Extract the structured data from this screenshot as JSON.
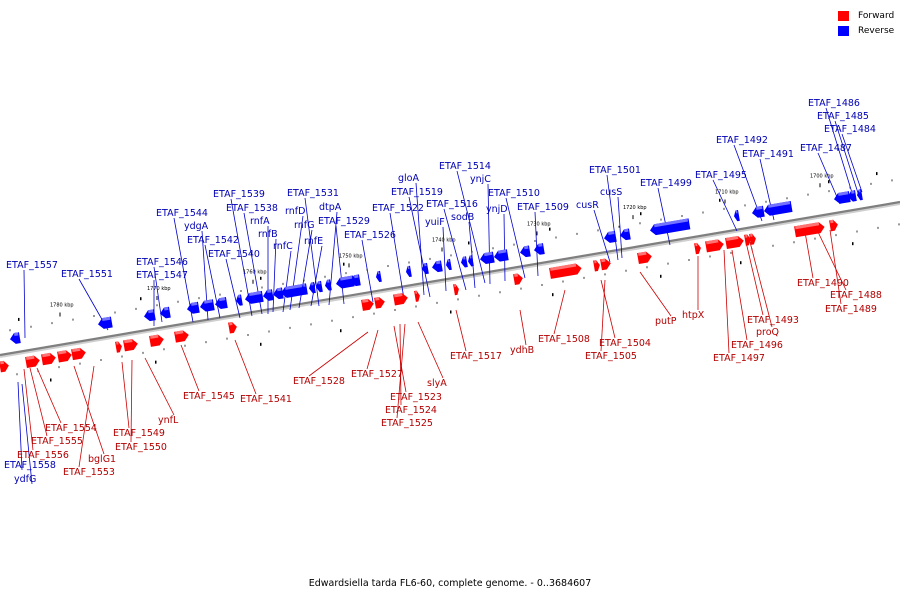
{
  "legend": {
    "forward_label": "Forward",
    "reverse_label": "Reverse",
    "forward_color": "#ff0000",
    "reverse_color": "#0000ff"
  },
  "caption": "Edwardsiella tarda FL6-60, complete genome. - 0..3684607",
  "colors": {
    "forward": "#ff0000",
    "forward_top": "#ff8080",
    "reverse": "#0000ff",
    "reverse_top": "#8080ff",
    "label_forward": "#b30000",
    "label_reverse": "#0000b3",
    "leader_forward": "#cc0000",
    "leader_reverse": "#0000cc",
    "axis": "#7f7f7f"
  },
  "scale": [
    {
      "label": "1780 kbp"
    },
    {
      "label": "1770 kbp"
    },
    {
      "label": "1760 kbp"
    },
    {
      "label": "1750 kbp"
    },
    {
      "label": "1740 kbp"
    },
    {
      "label": "1730 kbp"
    },
    {
      "label": "1720 kbp"
    },
    {
      "label": "1710 kbp"
    },
    {
      "label": "1700 kbp"
    }
  ],
  "reverse_labels": [
    "ETAF_1557",
    "ETAF_1551",
    "ETAF_1547",
    "ETAF_1546",
    "ETAF_1544",
    "ydgA",
    "ETAF_1542",
    "ETAF_1540",
    "ETAF_1539",
    "ETAF_1538",
    "rnfA",
    "rnfB",
    "rnfC",
    "rnfD",
    "rnfG",
    "rnfE",
    "ETAF_1531",
    "dtpA",
    "ETAF_1529",
    "ETAF_1526",
    "ETAF_1522",
    "gloA",
    "ETAF_1519",
    "yuiF",
    "ETAF_1516",
    "sodB",
    "ETAF_1514",
    "ynjC",
    "ynjD",
    "ETAF_1510",
    "ETAF_1509",
    "cusR",
    "ETAF_1501",
    "cusS",
    "ETAF_1499",
    "ETAF_1495",
    "ETAF_1492",
    "ETAF_1491",
    "ETAF_1487",
    "ETAF_1486",
    "ETAF_1485",
    "ETAF_1484",
    "ETAF_1558",
    "ydfG"
  ],
  "forward_labels": [
    "ETAF_1554",
    "ETAF_1555",
    "ETAF_1556",
    "bglG1",
    "ETAF_1553",
    "ETAF_1549",
    "ETAF_1550",
    "ynfL",
    "ETAF_1545",
    "ETAF_1541",
    "ETAF_1528",
    "ETAF_1527",
    "slyA",
    "ETAF_1523",
    "ETAF_1524",
    "ETAF_1525",
    "ETAF_1517",
    "ydhB",
    "ETAF_1508",
    "ETAF_1504",
    "ETAF_1505",
    "putP",
    "htpX",
    "ETAF_1493",
    "proQ",
    "ETAF_1496",
    "ETAF_1497",
    "ETAF_1490",
    "ETAF_1488",
    "ETAF_1489"
  ]
}
